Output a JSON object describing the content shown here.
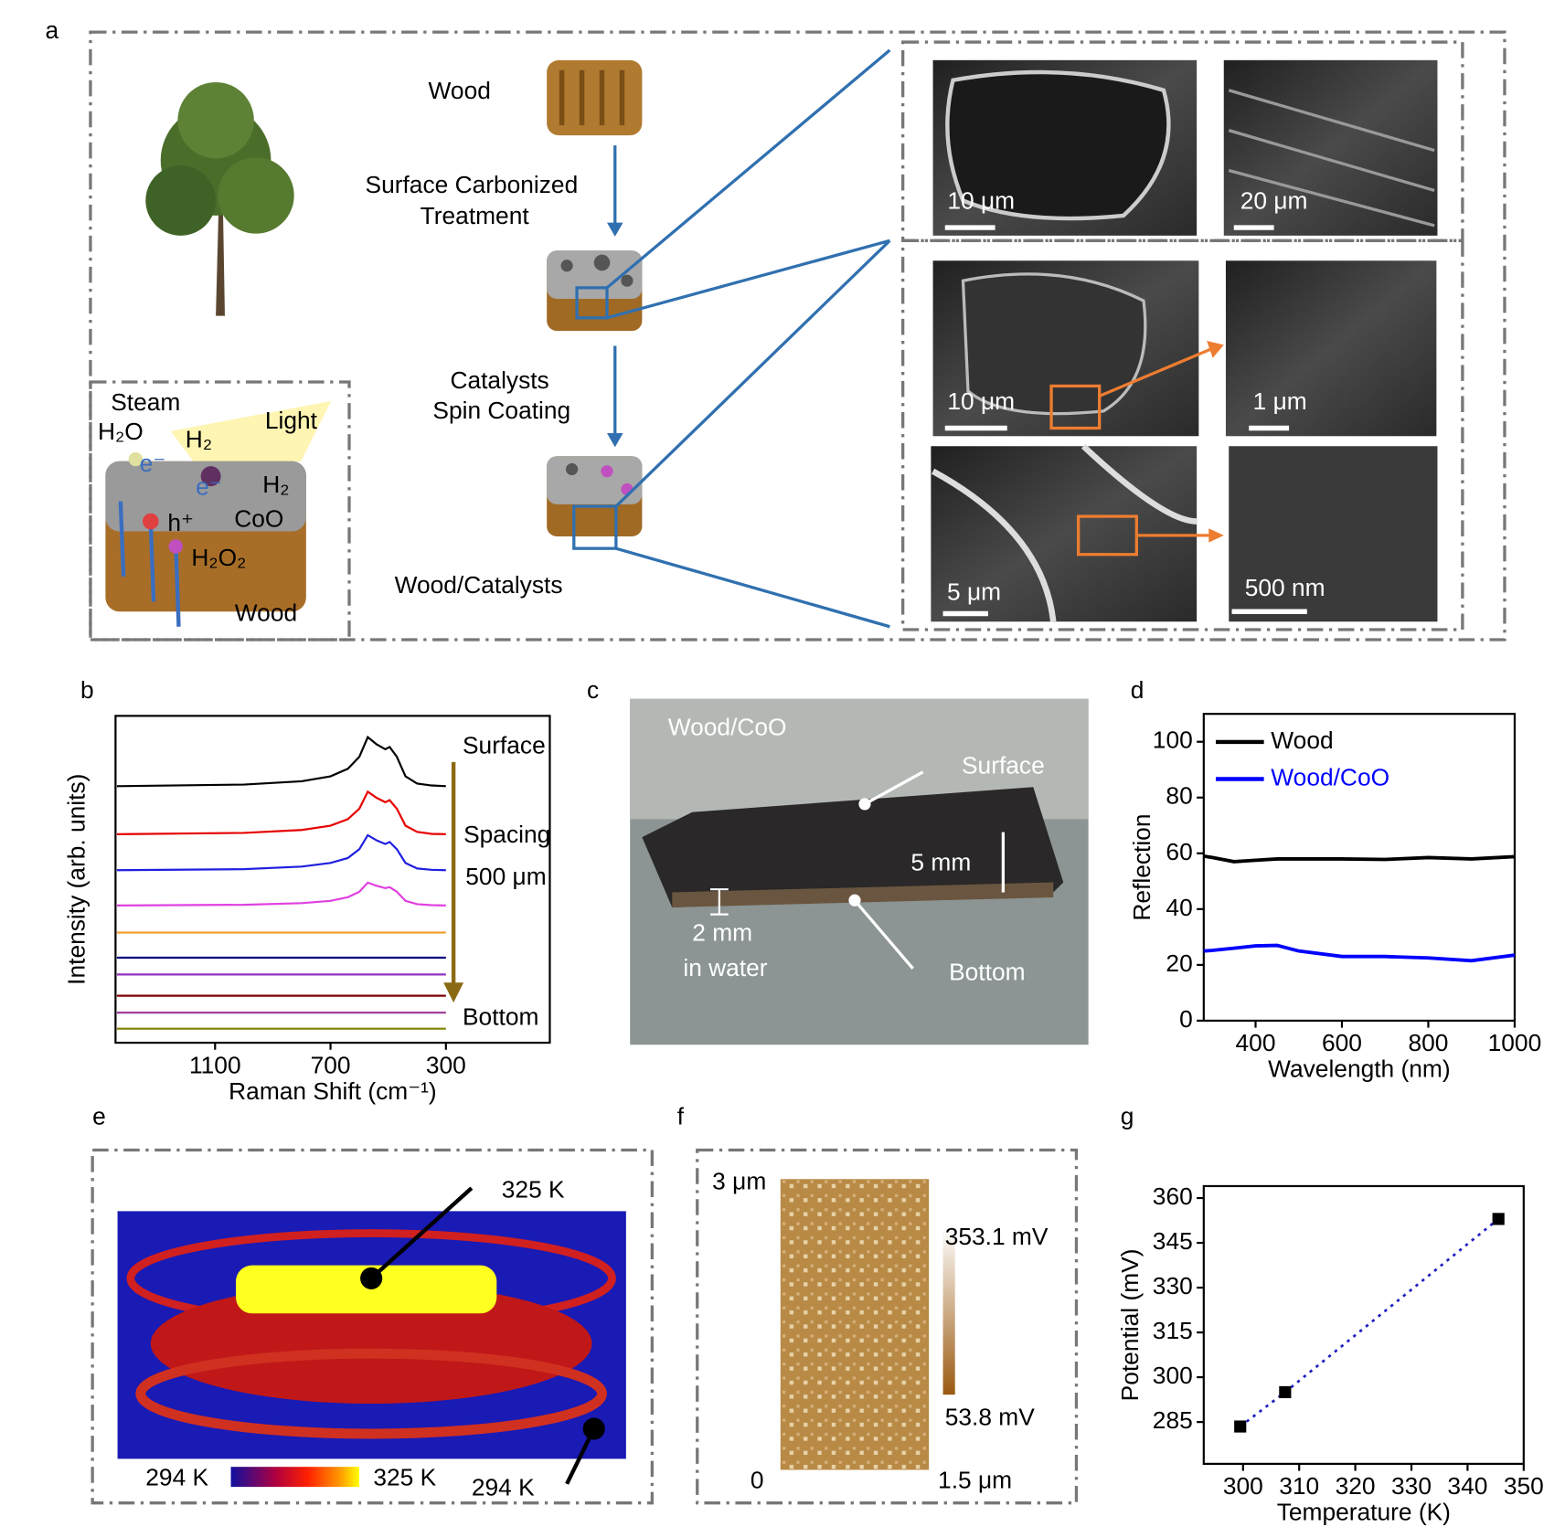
{
  "panel_labels": [
    "a",
    "b",
    "c",
    "d",
    "e",
    "f",
    "g"
  ],
  "panel_a": {
    "steps": [
      "Wood",
      "Surface Carbonized",
      "Treatment",
      "Catalysts",
      "Spin Coating",
      "Wood/Catalysts"
    ],
    "inset": [
      "Steam",
      "H₂O",
      "H₂",
      "Light",
      "H₂",
      "CoO",
      "h⁺",
      "H₂O₂",
      "Wood",
      "e⁻",
      "e⁻"
    ],
    "scale_bars": [
      "10 μm",
      "20 μm",
      "10 μm",
      "1 μm",
      "5 μm",
      "500 nm"
    ]
  },
  "chart_data": [
    {
      "type": "line",
      "xlabel": "Raman Shift (cm⁻¹)",
      "ylabel": "Intensity (arb. units)",
      "x": [
        1440,
        1000,
        800,
        700,
        640,
        600,
        571,
        540,
        510,
        495,
        470,
        440,
        400,
        350,
        300
      ],
      "xlim": [
        1445,
        -60
      ],
      "xticks": [
        1100,
        700,
        300
      ],
      "ylim": [
        0,
        100
      ],
      "annotations": [
        "Surface",
        "Spacing",
        "500 μm",
        "Bottom"
      ],
      "series": [
        {
          "color": "#000000",
          "values": [
            78.5,
            79,
            80,
            81.5,
            83.8,
            87.5,
            93.5,
            91.3,
            89.8,
            90.5,
            87.5,
            81.5,
            79.3,
            78.7,
            78.5
          ]
        },
        {
          "color": "#e60000",
          "values": [
            63.8,
            64.2,
            65.1,
            66.4,
            68.4,
            71.6,
            76.8,
            74.9,
            73.6,
            74.2,
            71.6,
            66.4,
            64.5,
            63.9,
            63.8
          ]
        },
        {
          "color": "#1f1fe0",
          "values": [
            52.8,
            53.1,
            53.9,
            55,
            56.5,
            59.2,
            63.5,
            61.9,
            60.8,
            61.4,
            59.2,
            55,
            53.3,
            52.9,
            52.8
          ]
        },
        {
          "color": "#e040e0",
          "values": [
            42,
            42.2,
            42.7,
            43.4,
            44.5,
            46.2,
            49,
            48,
            47.3,
            47.6,
            46.2,
            43.4,
            42.4,
            42.1,
            42
          ]
        },
        {
          "color": "#f0a030",
          "values": [
            33.7,
            33.7,
            33.7,
            33.7,
            33.7,
            33.7,
            33.7,
            33.7,
            33.7,
            33.7,
            33.7,
            33.7,
            33.7,
            33.7,
            33.7
          ]
        },
        {
          "color": "#000080",
          "values": [
            26,
            26,
            26,
            26,
            26,
            26,
            26,
            26,
            26,
            26,
            26,
            26,
            26,
            26,
            26
          ]
        },
        {
          "color": "#9030c0",
          "values": [
            20.9,
            20.9,
            20.9,
            20.9,
            20.9,
            20.9,
            20.9,
            20.9,
            20.9,
            20.9,
            20.9,
            20.9,
            20.9,
            20.9,
            20.9
          ]
        },
        {
          "color": "#800000",
          "values": [
            14.4,
            14.4,
            14.4,
            14.4,
            14.4,
            14.4,
            14.4,
            14.4,
            14.4,
            14.4,
            14.4,
            14.4,
            14.4,
            14.4,
            14.4
          ]
        },
        {
          "color": "#a040a0",
          "values": [
            9.2,
            9.2,
            9.2,
            9.2,
            9.2,
            9.2,
            9.2,
            9.2,
            9.2,
            9.2,
            9.2,
            9.2,
            9.2,
            9.2,
            9.2
          ]
        },
        {
          "color": "#808000",
          "values": [
            4.3,
            4.3,
            4.3,
            4.3,
            4.3,
            4.3,
            4.3,
            4.3,
            4.3,
            4.3,
            4.3,
            4.3,
            4.3,
            4.3,
            4.3
          ]
        }
      ]
    },
    {
      "type": "line",
      "xlabel": "Wavelength (nm)",
      "ylabel": "Reflection",
      "x": [
        280,
        300,
        350,
        400,
        450,
        500,
        600,
        700,
        800,
        900,
        1000
      ],
      "xlim": [
        280,
        1000
      ],
      "xticks": [
        400,
        600,
        800,
        1000
      ],
      "ylim": [
        0,
        110
      ],
      "yticks": [
        0,
        20,
        40,
        60,
        80,
        100
      ],
      "legend": "upper left",
      "series": [
        {
          "name": "Wood",
          "color": "#000000",
          "values": [
            59,
            58.5,
            57,
            57.5,
            58,
            58,
            58,
            57.8,
            58.5,
            58,
            58.8
          ]
        },
        {
          "name": "Wood/CoO",
          "color": "#0000ff",
          "values": [
            25,
            25.2,
            26,
            26.8,
            27,
            25,
            23,
            23,
            22.5,
            21.5,
            23.5
          ]
        }
      ]
    },
    {
      "type": "scatter",
      "xlabel": "Temperature (K)",
      "ylabel": "Potential (mV)",
      "xlim": [
        293,
        350
      ],
      "xticks": [
        300,
        310,
        320,
        330,
        340,
        350
      ],
      "ylim": [
        271,
        364
      ],
      "yticks": [
        285,
        300,
        315,
        330,
        345,
        360
      ],
      "trend_color": "#2020c0",
      "series": [
        {
          "color": "#000000",
          "x": [
            299.5,
            307.5,
            345.5
          ],
          "values": [
            283.5,
            295,
            353
          ]
        }
      ]
    }
  ],
  "panel_c": {
    "labels": [
      "Wood/CoO",
      "Surface",
      "5 mm",
      "2 mm",
      "in water",
      "Bottom"
    ]
  },
  "panel_e": {
    "labels": [
      "325 K",
      "294 K",
      "294 K",
      "325 K"
    ]
  },
  "panel_f": {
    "labels": [
      "3 μm",
      "0",
      "1.5 μm",
      "353.1 mV",
      "53.8 mV"
    ]
  }
}
